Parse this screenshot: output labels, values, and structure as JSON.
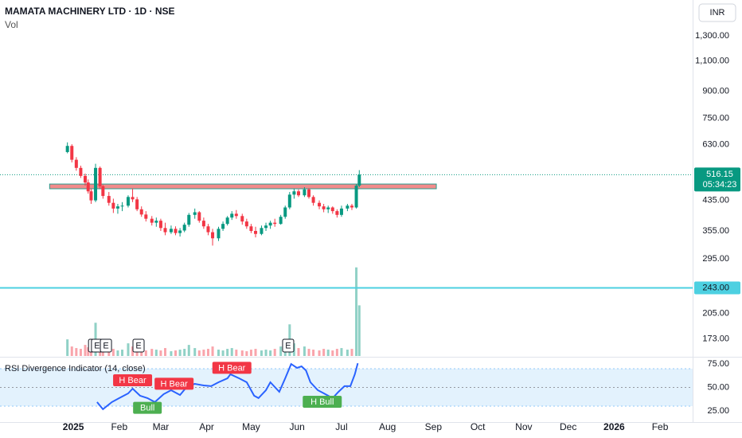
{
  "chart_data": [
    {
      "type": "candlestick",
      "title": "MAMATA MACHINERY LTD · 1D · NSE",
      "volume_label": "Vol",
      "currency": "INR",
      "log_scale": true,
      "grid": false,
      "up_color": "#089981",
      "down_color": "#f23645",
      "xlim": [
        -49.5,
        418
      ],
      "ylim": [
        154.5,
        1650
      ],
      "yticks": [
        {
          "value": 1300,
          "label": "1,300.00"
        },
        {
          "value": 1100,
          "label": "1,100.00"
        },
        {
          "value": 900,
          "label": "900.00"
        },
        {
          "value": 750,
          "label": "750.00"
        },
        {
          "value": 630,
          "label": "630.00"
        },
        {
          "value": 435,
          "label": "435.00"
        },
        {
          "value": 355,
          "label": "355.00"
        },
        {
          "value": 295,
          "label": "295.00"
        },
        {
          "value": 205,
          "label": "205.00"
        },
        {
          "value": 173,
          "label": "173.00"
        }
      ],
      "xticks": [
        {
          "value": 0,
          "label": "2025"
        },
        {
          "value": 31,
          "label": "Feb"
        },
        {
          "value": 59,
          "label": "Mar"
        },
        {
          "value": 90,
          "label": "Apr"
        },
        {
          "value": 120,
          "label": "May"
        },
        {
          "value": 151,
          "label": "Jun"
        },
        {
          "value": 181,
          "label": "Jul"
        },
        {
          "value": 212,
          "label": "Aug"
        },
        {
          "value": 243,
          "label": "Sep"
        },
        {
          "value": 273,
          "label": "Oct"
        },
        {
          "value": 304,
          "label": "Nov"
        },
        {
          "value": 334,
          "label": "Dec"
        },
        {
          "value": 365,
          "label": "2026"
        },
        {
          "value": 396,
          "label": "Feb"
        }
      ],
      "x": [
        -4,
        -1,
        2,
        5,
        8,
        10,
        12,
        15,
        18,
        20,
        24,
        27,
        30,
        33,
        37,
        40,
        43,
        46,
        49,
        53,
        56,
        59,
        62,
        66,
        69,
        72,
        75,
        78,
        82,
        85,
        88,
        91,
        94,
        98,
        101,
        104,
        107,
        110,
        114,
        117,
        120,
        123,
        127,
        130,
        133,
        136,
        140,
        143,
        146,
        149,
        152,
        156,
        159,
        162,
        166,
        169,
        172,
        175,
        178,
        181,
        185,
        188,
        191,
        193
      ],
      "open": [
        600,
        625,
        570,
        540,
        512,
        490,
        462,
        435,
        540,
        478,
        448,
        428,
        412,
        418,
        420,
        445,
        438,
        410,
        396,
        385,
        375,
        380,
        362,
        352,
        360,
        350,
        356,
        370,
        395,
        402,
        380,
        366,
        352,
        338,
        360,
        372,
        388,
        398,
        392,
        378,
        366,
        355,
        348,
        362,
        368,
        375,
        372,
        390,
        415,
        452,
        462,
        450,
        468,
        445,
        428,
        418,
        410,
        415,
        405,
        395,
        412,
        420,
        415,
        480
      ],
      "high": [
        640,
        632,
        580,
        548,
        520,
        500,
        470,
        555,
        545,
        482,
        460,
        440,
        425,
        430,
        450,
        470,
        445,
        418,
        405,
        392,
        388,
        385,
        375,
        368,
        366,
        362,
        375,
        400,
        412,
        405,
        388,
        372,
        360,
        365,
        378,
        392,
        405,
        408,
        398,
        385,
        372,
        365,
        368,
        375,
        380,
        385,
        395,
        420,
        460,
        470,
        468,
        475,
        472,
        450,
        435,
        425,
        420,
        418,
        410,
        420,
        425,
        425,
        485,
        532
      ],
      "low": [
        595,
        560,
        530,
        505,
        480,
        455,
        425,
        430,
        470,
        440,
        420,
        400,
        398,
        405,
        415,
        430,
        405,
        390,
        378,
        368,
        365,
        355,
        345,
        348,
        345,
        342,
        352,
        365,
        385,
        375,
        360,
        345,
        322,
        332,
        355,
        368,
        382,
        385,
        370,
        360,
        350,
        340,
        345,
        355,
        360,
        365,
        370,
        385,
        410,
        440,
        445,
        445,
        440,
        420,
        410,
        402,
        400,
        398,
        388,
        390,
        405,
        408,
        412,
        475
      ],
      "close": [
        625,
        570,
        540,
        512,
        490,
        462,
        435,
        540,
        478,
        448,
        428,
        412,
        418,
        420,
        445,
        438,
        410,
        396,
        385,
        375,
        380,
        362,
        352,
        360,
        350,
        356,
        370,
        395,
        402,
        380,
        366,
        352,
        338,
        360,
        372,
        388,
        398,
        392,
        378,
        366,
        355,
        348,
        362,
        368,
        375,
        372,
        390,
        415,
        452,
        462,
        450,
        468,
        445,
        428,
        418,
        410,
        415,
        405,
        395,
        412,
        420,
        415,
        480,
        516.15
      ],
      "volume_lim": [
        0,
        450
      ],
      "volume": [
        21,
        12,
        10,
        9,
        14,
        11,
        10,
        42,
        20,
        10,
        8,
        9,
        7,
        8,
        16,
        12,
        9,
        8,
        7,
        9,
        8,
        7,
        10,
        6,
        7,
        8,
        9,
        14,
        10,
        7,
        8,
        9,
        12,
        8,
        7,
        9,
        10,
        8,
        7,
        6,
        8,
        9,
        7,
        8,
        7,
        9,
        12,
        18,
        40,
        16,
        10,
        12,
        9,
        8,
        7,
        9,
        8,
        7,
        9,
        10,
        8,
        9,
        112,
        64
      ],
      "zone": {
        "xlim": [
          -16,
          245
        ],
        "ylim": [
          470,
          485
        ],
        "color": "#f28b8b",
        "border": "#2a9d8f"
      },
      "hlines": [
        {
          "value": 243,
          "label": "243.00",
          "color": "#4dd0e1"
        }
      ],
      "last_price_label": "516.15",
      "countdown": "05:34:23",
      "events": [
        {
          "x": 14,
          "label": "E"
        },
        {
          "x": 16,
          "label": "E"
        },
        {
          "x": 22,
          "label": "E"
        },
        {
          "x": 44,
          "label": "E"
        },
        {
          "x": 145,
          "label": "E"
        }
      ]
    },
    {
      "type": "line",
      "title": "RSI Divergence Indicator (14, close)",
      "color": "#2962ff",
      "band": [
        30,
        70
      ],
      "band_color": "#e3f2fd",
      "midline": 50,
      "xlim": [
        -49.5,
        418
      ],
      "ylim": [
        13,
        81
      ],
      "yticks": [
        {
          "value": 75,
          "label": "75.00"
        },
        {
          "value": 50,
          "label": "50.00"
        },
        {
          "value": 25,
          "label": "25.00"
        }
      ],
      "x": [
        16,
        20,
        26,
        31,
        37,
        40,
        45,
        50,
        55,
        61,
        66,
        72,
        77,
        82,
        88,
        93,
        98,
        104,
        106,
        112,
        117,
        122,
        125,
        130,
        133,
        139,
        143,
        147,
        151,
        154,
        157,
        160,
        165,
        168,
        172,
        175,
        179,
        183,
        187,
        190,
        192
      ],
      "values": [
        34.3,
        26.7,
        34.3,
        38.6,
        43.6,
        48.7,
        41.1,
        38.6,
        34.3,
        42.8,
        47.0,
        41.9,
        51.3,
        53.8,
        52.1,
        51.3,
        55.5,
        59.7,
        64.0,
        59.7,
        55.5,
        41.1,
        38.6,
        47.0,
        55.5,
        45.3,
        59.7,
        75.0,
        70.8,
        72.5,
        68.2,
        55.5,
        47.0,
        44.5,
        41.1,
        38.6,
        45.3,
        51.3,
        51.3,
        64.0,
        75.8
      ],
      "bear_color": "#f23645",
      "bull_color": "#4caf50",
      "bear_signals": [
        {
          "x": 40,
          "value": 48.7,
          "label": "H Bear"
        },
        {
          "x": 68,
          "value": 45,
          "label": "H Bear"
        },
        {
          "x": 107,
          "value": 62,
          "label": "H Bear"
        }
      ],
      "bull_signals": [
        {
          "x": 50,
          "value": 38,
          "label": "Bull"
        },
        {
          "x": 168,
          "value": 44.5,
          "label": "H Bull"
        }
      ]
    }
  ]
}
